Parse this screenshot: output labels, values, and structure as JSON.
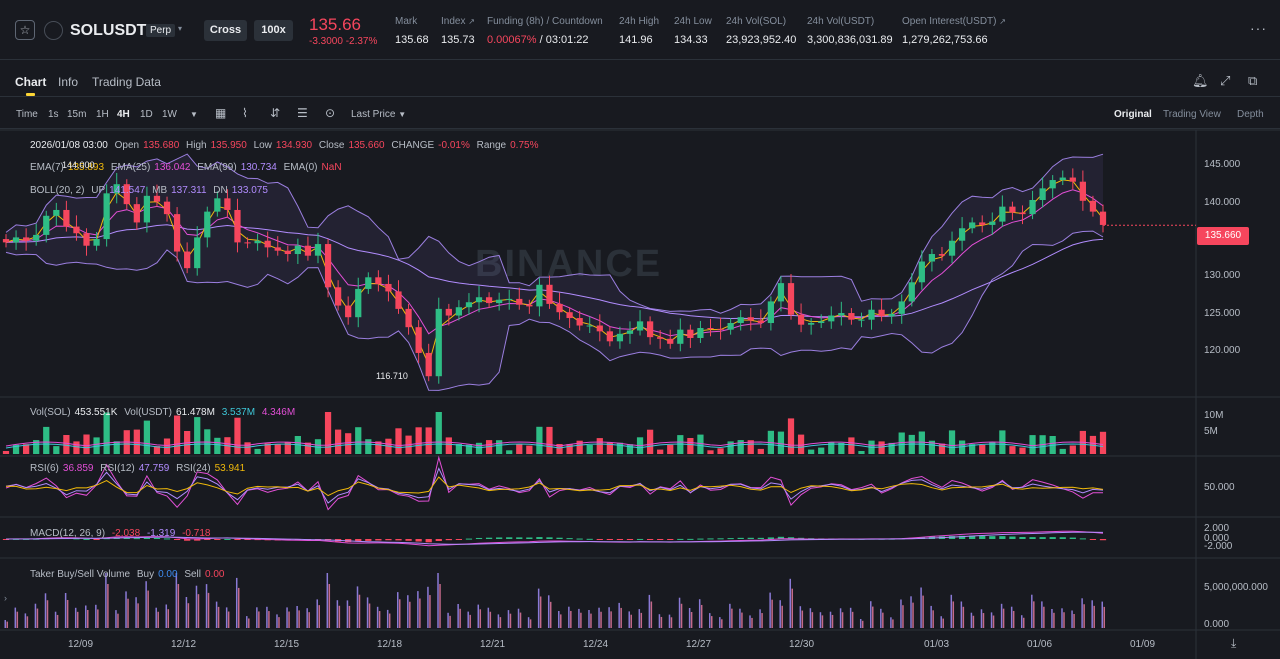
{
  "ticker": {
    "symbol": "SOLUSDT",
    "contract_type": "Perp",
    "margin_mode": "Cross",
    "leverage": "100x",
    "last_price": "135.66",
    "change": "-3.3000 -2.37%",
    "mark_label": "Mark",
    "mark_value": "135.68",
    "index_label": "Index",
    "index_value": "135.73",
    "funding_label": "Funding (8h) / Countdown",
    "funding_rate": "0.00067%",
    "countdown": " / 03:01:22",
    "high_label": "24h High",
    "high_value": "141.96",
    "low_label": "24h Low",
    "low_value": "134.33",
    "vol_sol_label": "24h Vol(SOL)",
    "vol_sol_value": "23,923,952.40",
    "vol_usdt_label": "24h Vol(USDT)",
    "vol_usdt_value": "3,300,836,031.89",
    "oi_label": "Open Interest(USDT)",
    "oi_value": "1,279,262,753.66"
  },
  "tabs": {
    "chart": "Chart",
    "info": "Info",
    "trading_data": "Trading Data"
  },
  "toolbar": {
    "time": "Time",
    "intervals": [
      "1s",
      "15m",
      "1H",
      "4H",
      "1D",
      "1W"
    ],
    "active_interval": "4H",
    "price_source": "Last Price",
    "views": [
      "Original",
      "Trading View",
      "Depth"
    ],
    "active_view": "Original"
  },
  "ohlc": {
    "date": "2026/01/08 03:00",
    "open_label": "Open",
    "open": "135.680",
    "high_label": "High",
    "high": "135.950",
    "low_label": "Low",
    "low": "134.930",
    "close_label": "Close",
    "close": "135.660",
    "change_label": "CHANGE",
    "change": "-0.01%",
    "range_label": "Range",
    "range": "0.75%"
  },
  "ema": {
    "ema7_label": "EMA(7)",
    "ema7": "135.893",
    "ema25_label": "EMA(25)",
    "ema25": "136.042",
    "ema99_label": "EMA(99)",
    "ema99": "130.734",
    "ema0_label": "EMA(0)",
    "ema0": "NaN"
  },
  "boll": {
    "label": "BOLL(20, 2)",
    "up_label": "UP",
    "up": "141.547",
    "mb_label": "MB",
    "mb": "137.311",
    "dn_label": "DN",
    "dn": "133.075"
  },
  "annotations": {
    "high": "144.000",
    "low": "116.710"
  },
  "watermark": "BINANCE",
  "current_price_tag": "135.660",
  "price_axis": [
    "145.000",
    "140.000",
    "135.000",
    "130.000",
    "125.000",
    "120.000"
  ],
  "volume": {
    "sol_label": "Vol(SOL)",
    "sol": "453.551K",
    "usdt_label": "Vol(USDT)",
    "usdt": "61.478M",
    "ma1": "3.537M",
    "ma2": "4.346M",
    "axis": [
      "10M",
      "5M"
    ]
  },
  "rsi": {
    "rsi6_label": "RSI(6)",
    "rsi6": "36.859",
    "rsi12_label": "RSI(12)",
    "rsi12": "47.759",
    "rsi24_label": "RSI(24)",
    "rsi24": "53.941",
    "axis": [
      "50.000"
    ]
  },
  "macd": {
    "label": "MACD(12, 26, 9)",
    "macd": "-2.038",
    "signal": "-1.319",
    "hist": "-0.718",
    "axis": [
      "2.000",
      "0.000",
      "-2.000"
    ]
  },
  "taker": {
    "label": "Taker Buy/Sell Volume",
    "buy_label": "Buy",
    "buy": "0.00",
    "sell_label": "Sell",
    "sell": "0.00",
    "axis": [
      "5,000,000.000",
      "0.000"
    ]
  },
  "date_axis": [
    "12/09",
    "12/12",
    "12/15",
    "12/18",
    "12/21",
    "12/24",
    "12/27",
    "12/30",
    "01/03",
    "01/06",
    "01/09"
  ],
  "colors": {
    "up": "#2ebd85",
    "down": "#f6465d",
    "bg": "#181a20",
    "accent": "#fcd535"
  },
  "chart_data": {
    "type": "candlestick",
    "series": [
      {
        "name": "EMA(7)",
        "values": []
      },
      {
        "name": "EMA(25)",
        "values": []
      },
      {
        "name": "EMA(99)",
        "values": []
      }
    ],
    "ylim": [
      115,
      147
    ],
    "close_trend": [
      133.6,
      134.2,
      133.8,
      134.5,
      136.8,
      137.5,
      135.5,
      134.7,
      133.2,
      134.0,
      139.5,
      140.6,
      138.2,
      136.0,
      139.2,
      138.5,
      137.0,
      132.5,
      130.5,
      134.2,
      137.3,
      138.9,
      137.5,
      133.6,
      133.5,
      133.8,
      133.0,
      132.6,
      132.2,
      133.2,
      132.0,
      133.4,
      128.2,
      126.0,
      124.6,
      128.0,
      129.4,
      128.6,
      127.7,
      125.6,
      123.4,
      120.3,
      117.5,
      125.6,
      124.8,
      125.8,
      126.4,
      127.0,
      126.3,
      126.7,
      126.8,
      126.1,
      125.9,
      128.5,
      126.2,
      125.2,
      124.5,
      123.6,
      123.6,
      122.9,
      121.7,
      122.6,
      123.0,
      124.1,
      122.2,
      122.0,
      121.4,
      123.1,
      122.1,
      123.3,
      123.2,
      123.1,
      123.9,
      124.6,
      124.2,
      123.9,
      126.5,
      128.7,
      124.9,
      123.7,
      123.9,
      124.1,
      124.8,
      125.1,
      124.3,
      124.3,
      125.5,
      124.7,
      125.0,
      126.5,
      128.8,
      131.3,
      132.2,
      132.0,
      133.8,
      135.3,
      136.0,
      135.7,
      136.1,
      137.9,
      137.2,
      137.0,
      138.7,
      140.1,
      141.1,
      141.4,
      140.9,
      138.6,
      137.3,
      135.7
    ]
  }
}
